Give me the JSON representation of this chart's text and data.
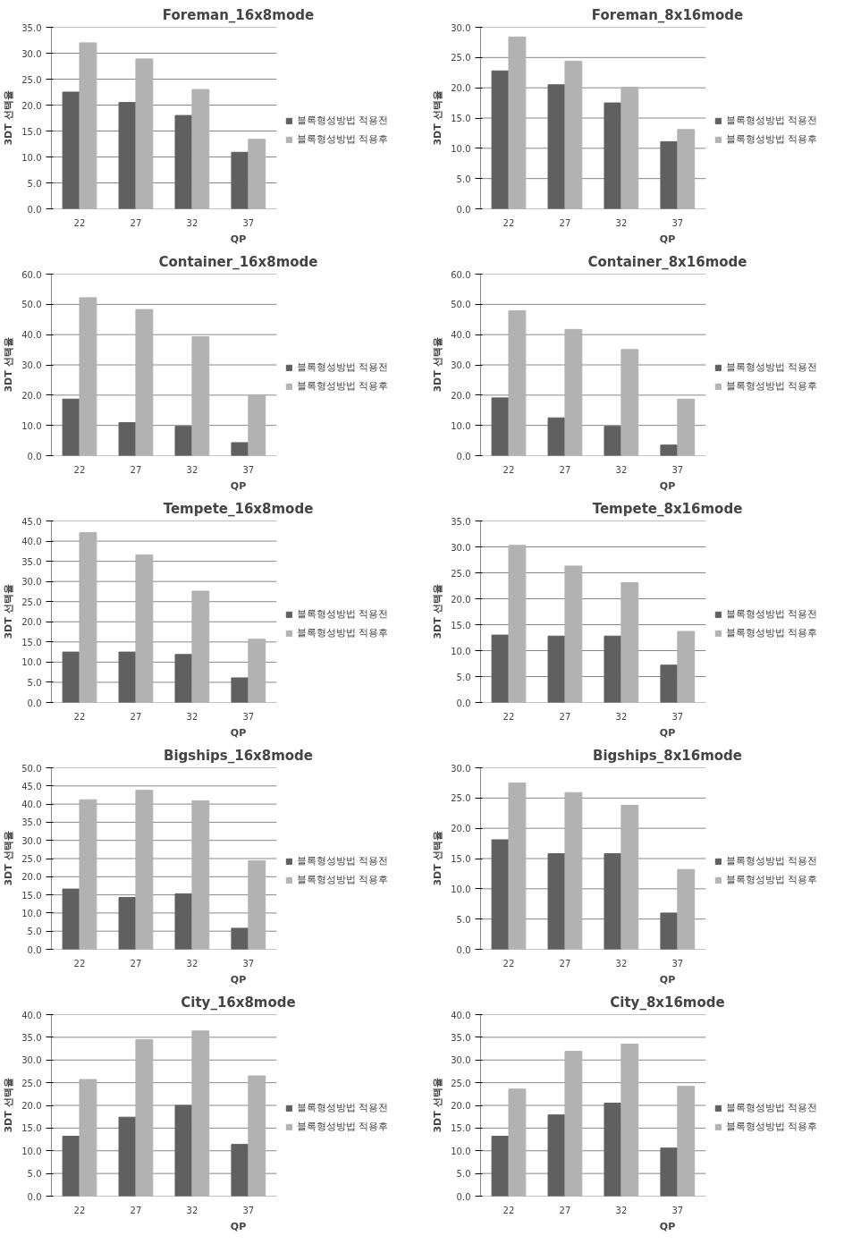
{
  "chart_data": [
    {
      "type": "bar",
      "title": "Foreman_16x8mode",
      "xlabel": "QP",
      "ylabel": "3DT 선택율",
      "categories": [
        "22",
        "27",
        "32",
        "37"
      ],
      "ylim": [
        0,
        35
      ],
      "yticks": [
        {
          "value": 0,
          "label": "0.0"
        },
        {
          "value": 5,
          "label": "5.0"
        },
        {
          "value": 10,
          "label": "10.0"
        },
        {
          "value": 15,
          "label": "15.0"
        },
        {
          "value": 20,
          "label": "20.0"
        },
        {
          "value": 25,
          "label": "25.0"
        },
        {
          "value": 30,
          "label": "30.0"
        },
        {
          "value": 35,
          "label": "35.0"
        }
      ],
      "grid": "y",
      "legend": "right",
      "series": [
        {
          "name": "블록형성방법 적용전",
          "color": "#606060",
          "values": [
            22.5,
            20.5,
            18.0,
            10.9
          ]
        },
        {
          "name": "블록형성방법 적용후",
          "color": "#b2b2b2",
          "values": [
            32.0,
            28.9,
            23.0,
            13.4
          ]
        }
      ]
    },
    {
      "type": "bar",
      "title": "Foreman_8x16mode",
      "xlabel": "QP",
      "ylabel": "3DT 선택율",
      "categories": [
        "22",
        "27",
        "32",
        "37"
      ],
      "ylim": [
        0,
        30
      ],
      "yticks": [
        {
          "value": 0,
          "label": "0.0"
        },
        {
          "value": 5,
          "label": "5.0"
        },
        {
          "value": 10,
          "label": "10.0"
        },
        {
          "value": 15,
          "label": "15.0"
        },
        {
          "value": 20,
          "label": "20.0"
        },
        {
          "value": 25,
          "label": "25.0"
        },
        {
          "value": 30,
          "label": "30.0"
        }
      ],
      "grid": "y",
      "legend": "right",
      "series": [
        {
          "name": "블록형성방법 적용전",
          "color": "#606060",
          "values": [
            22.8,
            20.5,
            17.5,
            11.1
          ]
        },
        {
          "name": "블록형성방법 적용후",
          "color": "#b2b2b2",
          "values": [
            28.4,
            24.4,
            20.1,
            13.1
          ]
        }
      ]
    },
    {
      "type": "bar",
      "title": "Container_16x8mode",
      "xlabel": "QP",
      "ylabel": "3DT 선택율",
      "categories": [
        "22",
        "27",
        "32",
        "37"
      ],
      "ylim": [
        0,
        60
      ],
      "yticks": [
        {
          "value": 0,
          "label": "0.0"
        },
        {
          "value": 10,
          "label": "10.0"
        },
        {
          "value": 20,
          "label": "20.0"
        },
        {
          "value": 30,
          "label": "30.0"
        },
        {
          "value": 40,
          "label": "40.0"
        },
        {
          "value": 50,
          "label": "50.0"
        },
        {
          "value": 60,
          "label": "60.0"
        }
      ],
      "grid": "y",
      "legend": "right",
      "series": [
        {
          "name": "블록형성방법 적용전",
          "color": "#606060",
          "values": [
            18.7,
            10.9,
            9.7,
            4.3
          ]
        },
        {
          "name": "블록형성방법 적용후",
          "color": "#b2b2b2",
          "values": [
            52.2,
            48.3,
            39.3,
            19.9
          ]
        }
      ]
    },
    {
      "type": "bar",
      "title": "Container_8x16mode",
      "xlabel": "QP",
      "ylabel": "3DT 선택율",
      "categories": [
        "22",
        "27",
        "32",
        "37"
      ],
      "ylim": [
        0,
        60
      ],
      "yticks": [
        {
          "value": 0,
          "label": "0.0"
        },
        {
          "value": 10,
          "label": "10.0"
        },
        {
          "value": 20,
          "label": "20.0"
        },
        {
          "value": 30,
          "label": "30.0"
        },
        {
          "value": 40,
          "label": "40.0"
        },
        {
          "value": 50,
          "label": "50.0"
        },
        {
          "value": 60,
          "label": "60.0"
        }
      ],
      "grid": "y",
      "legend": "right",
      "series": [
        {
          "name": "블록형성방법 적용전",
          "color": "#606060",
          "values": [
            19.1,
            12.5,
            9.7,
            3.5
          ]
        },
        {
          "name": "블록형성방법 적용후",
          "color": "#b2b2b2",
          "values": [
            47.9,
            41.7,
            35.1,
            18.7
          ]
        }
      ]
    },
    {
      "type": "bar",
      "title": "Tempete_16x8mode",
      "xlabel": "QP",
      "ylabel": "3DT 선택율",
      "categories": [
        "22",
        "27",
        "32",
        "37"
      ],
      "ylim": [
        0,
        45
      ],
      "yticks": [
        {
          "value": 0,
          "label": "0.0"
        },
        {
          "value": 5,
          "label": "5.0"
        },
        {
          "value": 10,
          "label": "10.0"
        },
        {
          "value": 15,
          "label": "15.0"
        },
        {
          "value": 20,
          "label": "20.0"
        },
        {
          "value": 25,
          "label": "25.0"
        },
        {
          "value": 30,
          "label": "30.0"
        },
        {
          "value": 35,
          "label": "35.0"
        },
        {
          "value": 40,
          "label": "40.0"
        },
        {
          "value": 45,
          "label": "45.0"
        }
      ],
      "grid": "y",
      "legend": "right",
      "series": [
        {
          "name": "블록형성방법 적용전",
          "color": "#606060",
          "values": [
            12.5,
            12.5,
            11.9,
            6.1
          ]
        },
        {
          "name": "블록형성방법 적용후",
          "color": "#b2b2b2",
          "values": [
            42.1,
            36.6,
            27.6,
            15.7
          ]
        }
      ]
    },
    {
      "type": "bar",
      "title": "Tempete_8x16mode",
      "xlabel": "QP",
      "ylabel": "3DT 선택율",
      "categories": [
        "22",
        "27",
        "32",
        "37"
      ],
      "ylim": [
        0,
        35
      ],
      "yticks": [
        {
          "value": 0,
          "label": "0.0"
        },
        {
          "value": 5,
          "label": "5.0"
        },
        {
          "value": 10,
          "label": "10.0"
        },
        {
          "value": 15,
          "label": "15.0"
        },
        {
          "value": 20,
          "label": "20.0"
        },
        {
          "value": 25,
          "label": "25.0"
        },
        {
          "value": 30,
          "label": "30.0"
        },
        {
          "value": 35,
          "label": "35.0"
        }
      ],
      "grid": "y",
      "legend": "right",
      "series": [
        {
          "name": "블록형성방법 적용전",
          "color": "#606060",
          "values": [
            13.0,
            12.8,
            12.8,
            7.2
          ]
        },
        {
          "name": "블록형성방법 적용후",
          "color": "#b2b2b2",
          "values": [
            30.3,
            26.3,
            23.1,
            13.7
          ]
        }
      ]
    },
    {
      "type": "bar",
      "title": "Bigships_16x8mode",
      "xlabel": "QP",
      "ylabel": "3DT 선택율",
      "categories": [
        "22",
        "27",
        "32",
        "37"
      ],
      "ylim": [
        0,
        50
      ],
      "yticks": [
        {
          "value": 0,
          "label": "0.0"
        },
        {
          "value": 5,
          "label": "5.0"
        },
        {
          "value": 10,
          "label": "10.0"
        },
        {
          "value": 15,
          "label": "15.0"
        },
        {
          "value": 20,
          "label": "20.0"
        },
        {
          "value": 25,
          "label": "25.0"
        },
        {
          "value": 30,
          "label": "30.0"
        },
        {
          "value": 35,
          "label": "35.0"
        },
        {
          "value": 40,
          "label": "40.0"
        },
        {
          "value": 45,
          "label": "45.0"
        },
        {
          "value": 50,
          "label": "50.0"
        }
      ],
      "grid": "y",
      "legend": "right",
      "series": [
        {
          "name": "블록형성방법 적용전",
          "color": "#606060",
          "values": [
            16.6,
            14.3,
            15.3,
            5.8
          ]
        },
        {
          "name": "블록형성방법 적용후",
          "color": "#b2b2b2",
          "values": [
            41.2,
            43.8,
            40.9,
            24.4
          ]
        }
      ]
    },
    {
      "type": "bar",
      "title": "Bigships_8x16mode",
      "xlabel": "QP",
      "ylabel": "3DT 선택율",
      "categories": [
        "22",
        "27",
        "32",
        "37"
      ],
      "ylim": [
        0,
        30
      ],
      "yticks": [
        {
          "value": 0,
          "label": "0.0"
        },
        {
          "value": 5,
          "label": "5.0"
        },
        {
          "value": 10,
          "label": "10.0"
        },
        {
          "value": 15,
          "label": "15.0"
        },
        {
          "value": 20,
          "label": "20.0"
        },
        {
          "value": 25,
          "label": "25.0"
        },
        {
          "value": 30,
          "label": "30.0"
        }
      ],
      "grid": "y",
      "legend": "right",
      "series": [
        {
          "name": "블록형성방법 적용전",
          "color": "#606060",
          "values": [
            18.1,
            15.8,
            15.8,
            6.0
          ]
        },
        {
          "name": "블록형성방법 적용후",
          "color": "#b2b2b2",
          "values": [
            27.5,
            25.9,
            23.8,
            13.2
          ]
        }
      ]
    },
    {
      "type": "bar",
      "title": "City_16x8mode",
      "xlabel": "QP",
      "ylabel": "3DT 선택율",
      "categories": [
        "22",
        "27",
        "32",
        "37"
      ],
      "ylim": [
        0,
        40
      ],
      "yticks": [
        {
          "value": 0,
          "label": "0.0"
        },
        {
          "value": 5,
          "label": "5.0"
        },
        {
          "value": 10,
          "label": "10.0"
        },
        {
          "value": 15,
          "label": "15.0"
        },
        {
          "value": 20,
          "label": "20.0"
        },
        {
          "value": 25,
          "label": "25.0"
        },
        {
          "value": 30,
          "label": "30.0"
        },
        {
          "value": 35,
          "label": "35.0"
        },
        {
          "value": 40,
          "label": "40.0"
        }
      ],
      "grid": "y",
      "legend": "right",
      "series": [
        {
          "name": "블록형성방법 적용전",
          "color": "#606060",
          "values": [
            13.2,
            17.4,
            20.0,
            11.4
          ]
        },
        {
          "name": "블록형성방법 적용후",
          "color": "#b2b2b2",
          "values": [
            25.7,
            34.5,
            36.4,
            26.5
          ]
        }
      ]
    },
    {
      "type": "bar",
      "title": "City_8x16mode",
      "xlabel": "QP",
      "ylabel": "3DT 선택율",
      "categories": [
        "22",
        "27",
        "32",
        "37"
      ],
      "ylim": [
        0,
        40
      ],
      "yticks": [
        {
          "value": 0,
          "label": "0.0"
        },
        {
          "value": 5,
          "label": "5.0"
        },
        {
          "value": 10,
          "label": "10.0"
        },
        {
          "value": 15,
          "label": "15.0"
        },
        {
          "value": 20,
          "label": "20.0"
        },
        {
          "value": 25,
          "label": "25.0"
        },
        {
          "value": 30,
          "label": "30.0"
        },
        {
          "value": 35,
          "label": "35.0"
        },
        {
          "value": 40,
          "label": "40.0"
        }
      ],
      "grid": "y",
      "legend": "right",
      "series": [
        {
          "name": "블록형성방법 적용전",
          "color": "#606060",
          "values": [
            13.2,
            17.9,
            20.5,
            10.6
          ]
        },
        {
          "name": "블록형성방법 적용후",
          "color": "#b2b2b2",
          "values": [
            23.6,
            31.9,
            33.5,
            24.2
          ]
        }
      ]
    }
  ]
}
